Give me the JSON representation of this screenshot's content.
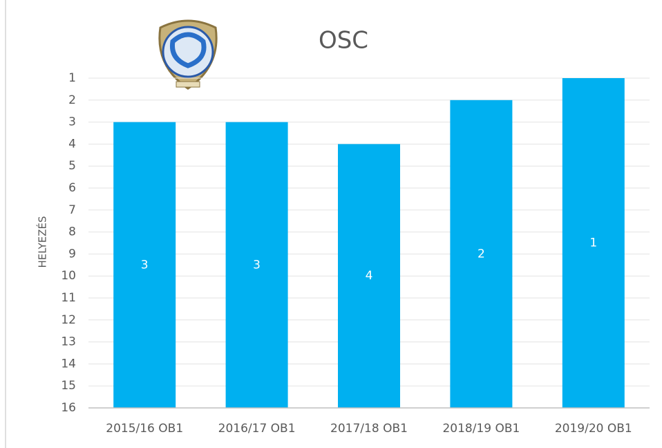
{
  "chart_data": {
    "type": "bar",
    "title": "OSC",
    "y_label": "HELYEZÉS",
    "categories": [
      "2015/16 OB1",
      "2016/17 OB1",
      "2017/18 OB1",
      "2018/19 OB1",
      "2019/20 OB1"
    ],
    "values": [
      3,
      3,
      4,
      2,
      1
    ],
    "color": "#00b0f0",
    "ylim": [
      16,
      1
    ],
    "yticks": [
      1,
      2,
      3,
      4,
      5,
      6,
      7,
      8,
      9,
      10,
      11,
      12,
      13,
      14,
      15,
      16
    ],
    "grid": true
  }
}
